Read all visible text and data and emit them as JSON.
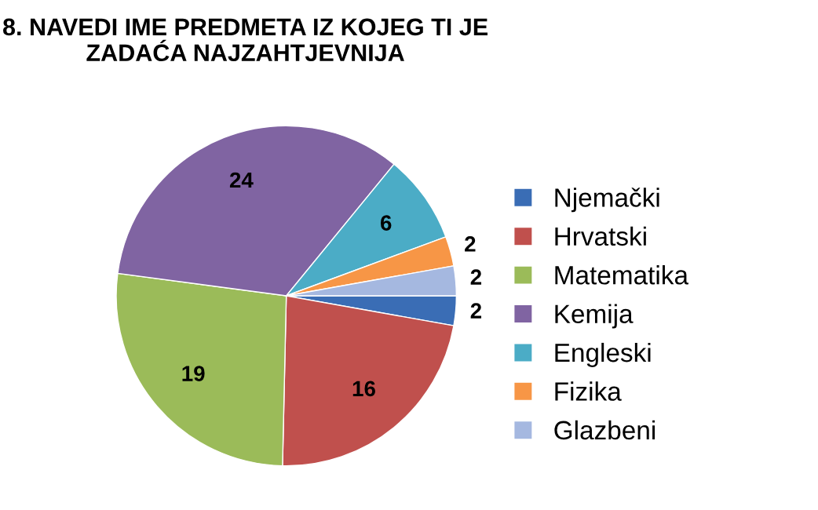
{
  "chart_data": {
    "type": "pie",
    "title": "8. NAVEDI IME PREDMETA IZ KOJEG TI JE ZADAĆA NAJZAHTJEVNIJA",
    "categories": [
      "Njemački",
      "Hrvatski",
      "Matematika",
      "Kemija",
      "Engleski",
      "Fizika",
      "Glazbeni"
    ],
    "values": [
      2,
      16,
      19,
      24,
      6,
      2,
      2
    ],
    "colors": [
      "#3a6db5",
      "#c0504d",
      "#9bbb59",
      "#8064a2",
      "#4bacc6",
      "#f79646",
      "#a5b8e0"
    ],
    "data_labels": true,
    "legend": "right"
  }
}
